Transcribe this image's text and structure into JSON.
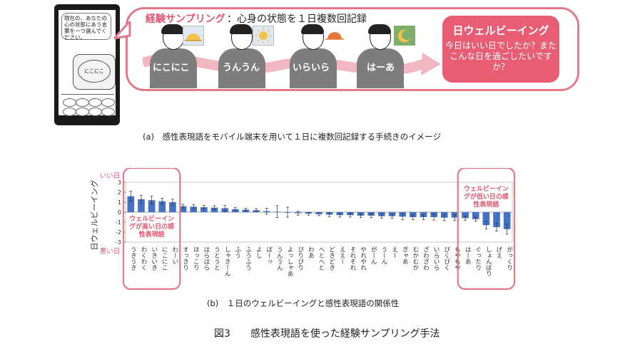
{
  "phone": {
    "prompt_text": "現在の、あなたの心の状態にあう言葉を一つ選んでください。",
    "cloud_text": "にこにこ"
  },
  "panel_a": {
    "title_accent": "経験サンプリング",
    "title_rest": "：心身の状態を１日複数回記録",
    "moods": [
      "にこにこ",
      "うんうん",
      "いらいら",
      "はーあ"
    ],
    "weather_icons": [
      "sunrise-icon",
      "sun-icon",
      "sunset-icon",
      "moon-icon"
    ],
    "goal_title": "日ウェルビーイング",
    "goal_text": "今日はいい日でしたか？またこんな日を過ごしたいですか？",
    "caption": "(a)　感性表現語をモバイル端末を用いて１日に複数回記録する手続きのイメージ"
  },
  "panel_b": {
    "caption": "(b)　１日のウェルビーイングと感性表現語の関係性"
  },
  "figure_title": "図3　　感性表現語を使った経験サンプリング手法",
  "colors": {
    "accent": "#e2566f",
    "bar": "#4472c4"
  },
  "chart_data": {
    "type": "bar",
    "ylabel": "日ウェルビーイング",
    "ylim": [
      -3,
      3
    ],
    "yticks": [
      3,
      2,
      1,
      0,
      -1,
      -2,
      -3
    ],
    "y_top_label": "いい日",
    "y_bottom_label": "悪い日",
    "categories": [
      "うきうき",
      "わくわく",
      "いきいき",
      "にこにこ",
      "わーい",
      "すっきり",
      "ほっこり",
      "はらはら",
      "うとうと",
      "しゃきーん",
      "ふう",
      "ふうふう",
      "よし",
      "ぼーっ",
      "うんうん",
      "よっしゃあ",
      "ぴりぴり",
      "わあ",
      "へとへと",
      "どきどき",
      "ええー",
      "それそれ",
      "やれやれ",
      "がーん",
      "うーん",
      "えー",
      "ぎゃあ",
      "むかむか",
      "ざわざわ",
      "いらいら",
      "びくびく",
      "もやもや",
      "はーあ",
      "ぐったり",
      "しょんぼり",
      "げえ",
      "がっくり"
    ],
    "values": [
      1.6,
      1.3,
      1.2,
      1.1,
      1.0,
      0.6,
      0.55,
      0.5,
      0.45,
      0.4,
      0.3,
      0.25,
      0.2,
      0.1,
      0.05,
      0.0,
      -0.1,
      -0.15,
      -0.2,
      -0.25,
      -0.3,
      -0.3,
      -0.35,
      -0.35,
      -0.4,
      -0.4,
      -0.45,
      -0.5,
      -0.5,
      -0.5,
      -0.55,
      -0.55,
      -0.6,
      -0.7,
      -1.3,
      -1.5,
      -1.7
    ],
    "errors": [
      0.5,
      0.4,
      0.4,
      0.3,
      0.3,
      0.2,
      0.2,
      0.2,
      0.2,
      0.3,
      0.15,
      0.15,
      0.15,
      0.3,
      0.6,
      0.5,
      0.2,
      0.15,
      0.15,
      0.2,
      0.2,
      0.2,
      0.2,
      0.2,
      0.2,
      0.2,
      0.3,
      0.25,
      0.25,
      0.3,
      0.3,
      0.3,
      0.2,
      0.2,
      0.4,
      0.4,
      0.5
    ],
    "highlight_left": {
      "label": "ウェルビーイングが高い日の感性表現語"
    },
    "highlight_right": {
      "label": "ウェルビーイングが低い日の感性表現語"
    }
  }
}
